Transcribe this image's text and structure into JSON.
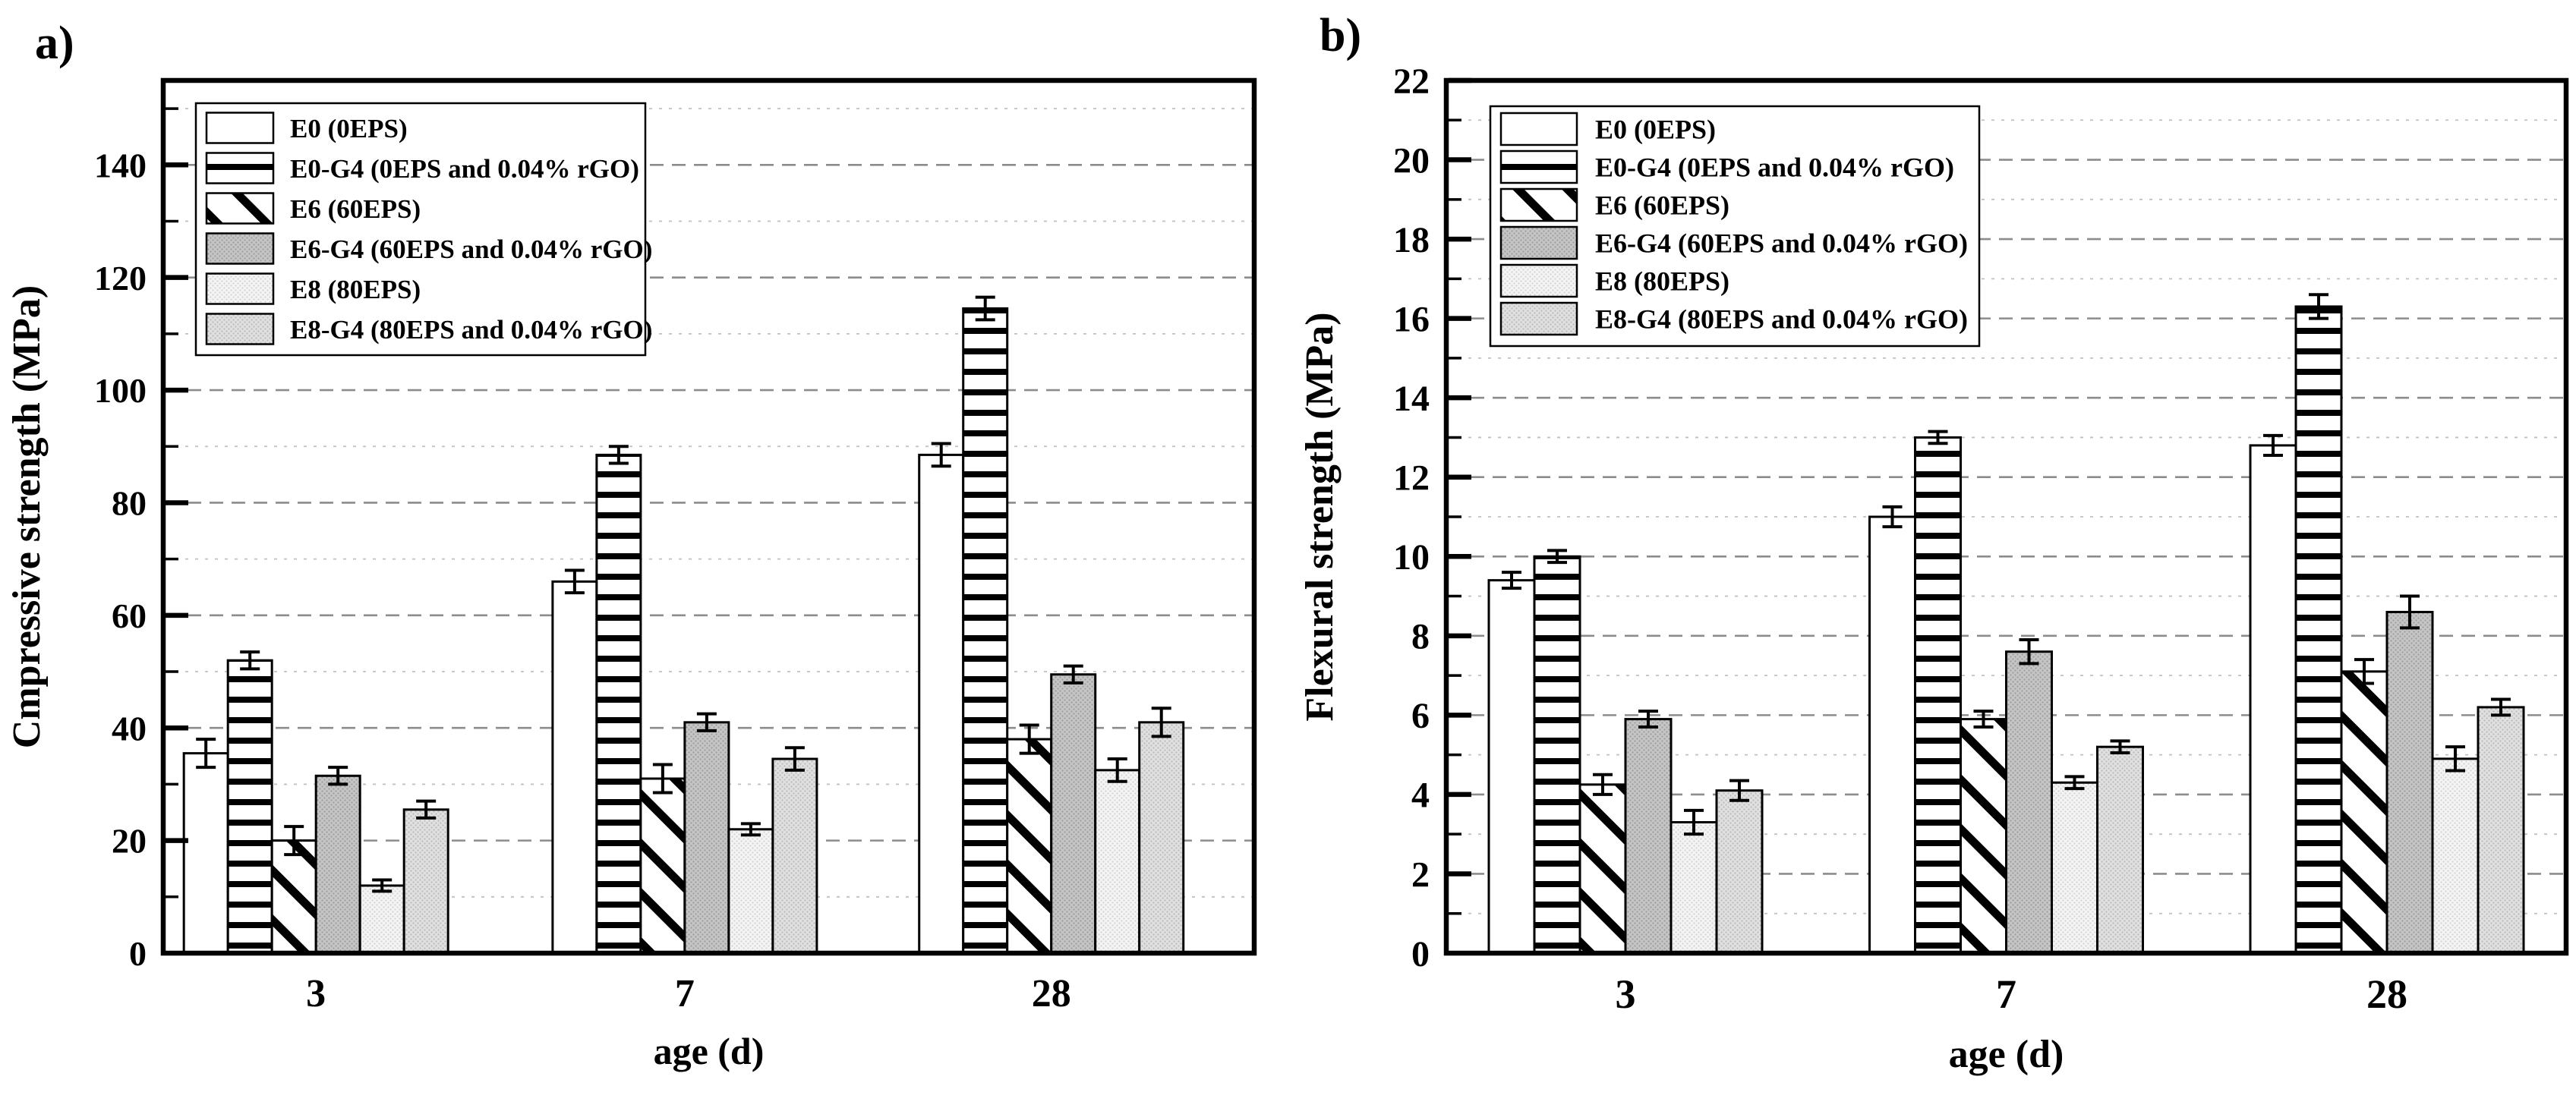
{
  "figure_type": "two-panel grouped bar chart with error bars",
  "chart_data": [
    {
      "panel_label": "a)",
      "type": "bar",
      "title": "",
      "xlabel": "age (d)",
      "ylabel": "Cmpressive strength (MPa)",
      "categories": [
        "3",
        "7",
        "28"
      ],
      "ylim": [
        0,
        155
      ],
      "ytick_interval": 20,
      "minor_tick_interval": 10,
      "ytick_labels": [
        "0",
        "20",
        "40",
        "60",
        "80",
        "100",
        "120",
        "140"
      ],
      "grid": "horizontal dashed at major ticks, dotted at minor ticks",
      "legend_position": "upper-left",
      "series": [
        {
          "name": "E0 (0EPS)",
          "pattern": "plain",
          "values": [
            35.5,
            66.0,
            88.5
          ],
          "errors": [
            2.5,
            2.0,
            2.0
          ]
        },
        {
          "name": "E0-G4 (0EPS and 0.04% rGO)",
          "pattern": "hlines",
          "values": [
            52.0,
            88.5,
            114.5
          ],
          "errors": [
            1.5,
            1.5,
            2.0
          ]
        },
        {
          "name": "E6 (60EPS)",
          "pattern": "diagonal",
          "values": [
            20.0,
            31.0,
            38.0
          ],
          "errors": [
            2.5,
            2.5,
            2.5
          ]
        },
        {
          "name": "E6-G4 (60EPS and 0.04% rGO)",
          "pattern": "gray-fine",
          "values": [
            31.5,
            41.0,
            49.5
          ],
          "errors": [
            1.5,
            1.5,
            1.5
          ]
        },
        {
          "name": "E8 (80EPS)",
          "pattern": "light-dots",
          "values": [
            12.0,
            22.0,
            32.5
          ],
          "errors": [
            1.0,
            1.0,
            2.0
          ]
        },
        {
          "name": "E8-G4 (80EPS and 0.04% rGO)",
          "pattern": "gray-dots",
          "values": [
            25.5,
            34.5,
            41.0
          ],
          "errors": [
            1.5,
            2.0,
            2.5
          ]
        }
      ],
      "colors": {
        "bar_outline": "#000000",
        "grid_major": "#8c8c8c",
        "grid_minor": "#c0c0c0",
        "gray_fill": "#c5c5c5",
        "light_fill": "#f4f4f4",
        "lightgray_fill": "#e0e0e0"
      }
    },
    {
      "panel_label": "b)",
      "type": "bar",
      "title": "",
      "xlabel": "age (d)",
      "ylabel": "Flexural strength (MPa)",
      "categories": [
        "3",
        "7",
        "28"
      ],
      "ylim": [
        0,
        22
      ],
      "ytick_interval": 2,
      "minor_tick_interval": 1,
      "ytick_labels": [
        "0",
        "2",
        "4",
        "6",
        "8",
        "10",
        "12",
        "14",
        "16",
        "18",
        "20",
        "22"
      ],
      "grid": "horizontal dashed at major ticks, dotted at minor ticks",
      "legend_position": "upper-left",
      "series": [
        {
          "name": "E0 (0EPS)",
          "pattern": "plain",
          "values": [
            9.4,
            11.0,
            12.8
          ],
          "errors": [
            0.2,
            0.25,
            0.25
          ]
        },
        {
          "name": "E0-G4 (0EPS and 0.04% rGO)",
          "pattern": "hlines",
          "values": [
            10.0,
            13.0,
            16.3
          ],
          "errors": [
            0.15,
            0.15,
            0.3
          ]
        },
        {
          "name": "E6 (60EPS)",
          "pattern": "diagonal",
          "values": [
            4.25,
            5.9,
            7.1
          ],
          "errors": [
            0.25,
            0.2,
            0.3
          ]
        },
        {
          "name": "E6-G4 (60EPS and 0.04% rGO)",
          "pattern": "gray-fine",
          "values": [
            5.9,
            7.6,
            8.6
          ],
          "errors": [
            0.2,
            0.3,
            0.4
          ]
        },
        {
          "name": "E8 (80EPS)",
          "pattern": "light-dots",
          "values": [
            3.3,
            4.3,
            4.9
          ],
          "errors": [
            0.3,
            0.15,
            0.3
          ]
        },
        {
          "name": "E8-G4 (80EPS and 0.04% rGO)",
          "pattern": "gray-dots",
          "values": [
            4.1,
            5.2,
            6.2
          ],
          "errors": [
            0.25,
            0.15,
            0.2
          ]
        }
      ],
      "colors": {
        "bar_outline": "#000000",
        "grid_major": "#8c8c8c",
        "grid_minor": "#c0c0c0",
        "gray_fill": "#c5c5c5",
        "light_fill": "#f4f4f4",
        "lightgray_fill": "#e0e0e0"
      }
    }
  ]
}
